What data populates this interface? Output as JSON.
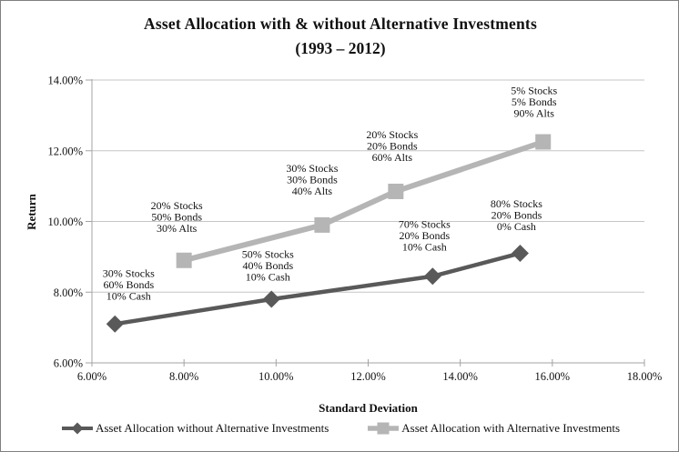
{
  "colors": {
    "series_without_alts": "#595959",
    "series_with_alts": "#b5b5b5",
    "gridline": "#c6c6c6",
    "axis": "#a3a3a3",
    "text": "#111111",
    "frame_border": "#7f7f7f"
  },
  "chart_data": {
    "type": "line",
    "title": "Asset Allocation with & without Alternative Investments",
    "subtitle": "(1993 – 2012)",
    "xlabel": "Standard Deviation",
    "ylabel": "Return",
    "xlim": [
      6,
      18
    ],
    "ylim": [
      6,
      14
    ],
    "x_tick_labels": [
      "6.00%",
      "8.00%",
      "10.00%",
      "12.00%",
      "14.00%",
      "16.00%",
      "18.00%"
    ],
    "x_tick_values": [
      6,
      8,
      10,
      12,
      14,
      16,
      18
    ],
    "y_tick_labels": [
      "6.00%",
      "8.00%",
      "10.00%",
      "12.00%",
      "14.00%"
    ],
    "y_tick_values": [
      6,
      8,
      10,
      12,
      14
    ],
    "grid": "horizontal",
    "legend_position": "bottom",
    "series": [
      {
        "name": "Asset Allocation without Alternative Investments",
        "marker": "diamond",
        "color": "#595959",
        "line_width": 4.5,
        "points": [
          {
            "x": 6.5,
            "y": 7.1,
            "label": [
              "30% Stocks",
              "60% Bonds",
              "10% Cash"
            ],
            "label_dx": 15,
            "label_dy": -43
          },
          {
            "x": 9.9,
            "y": 7.8,
            "label": [
              "50% Stocks",
              "40% Bonds",
              "10% Cash"
            ],
            "label_dx": -4,
            "label_dy": -37
          },
          {
            "x": 13.4,
            "y": 8.45,
            "label": [
              "70% Stocks",
              "20% Bonds",
              "10% Cash"
            ],
            "label_dx": -9,
            "label_dy": -45
          },
          {
            "x": 15.3,
            "y": 9.1,
            "label": [
              "80% Stocks",
              "20% Bonds",
              "0% Cash"
            ],
            "label_dx": -4,
            "label_dy": -42
          }
        ]
      },
      {
        "name": "Asset Allocation with Alternative Investments",
        "marker": "square",
        "color": "#b5b5b5",
        "line_width": 6,
        "points": [
          {
            "x": 8.0,
            "y": 8.9,
            "label": [
              "20% Stocks",
              "50% Bonds",
              "30% Alts"
            ],
            "label_dx": -8,
            "label_dy": -48
          },
          {
            "x": 11.0,
            "y": 9.9,
            "label": [
              "30% Stocks",
              "30% Bonds",
              "40% Alts"
            ],
            "label_dx": -11,
            "label_dy": -50
          },
          {
            "x": 12.6,
            "y": 10.85,
            "label": [
              "20% Stocks",
              "20% Bonds",
              "60% Alts"
            ],
            "label_dx": -4,
            "label_dy": -50
          },
          {
            "x": 15.8,
            "y": 12.25,
            "label": [
              "5% Stocks",
              "5% Bonds",
              "90% Alts"
            ],
            "label_dx": -10,
            "label_dy": -44
          }
        ]
      }
    ]
  }
}
